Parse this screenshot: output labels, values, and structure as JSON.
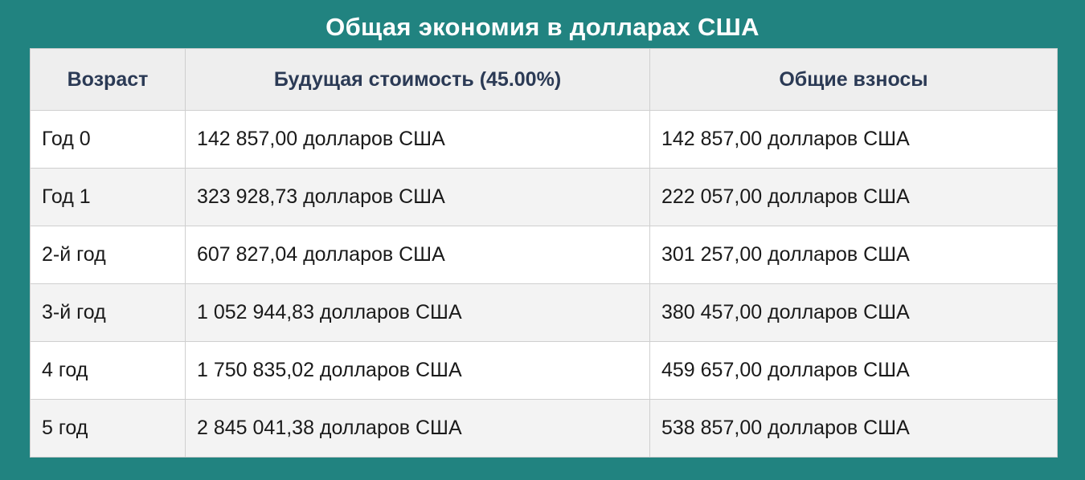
{
  "title": "Общая экономия в долларах США",
  "table": {
    "headers": [
      "Возраст",
      "Будущая стоимость (45.00%)",
      "Общие взносы"
    ],
    "rows": [
      [
        "Год 0",
        "142 857,00 долларов США",
        "142 857,00 долларов США"
      ],
      [
        "Год 1",
        "323 928,73 долларов США",
        "222 057,00 долларов США"
      ],
      [
        "2-й год",
        "607 827,04 долларов США",
        "301 257,00 долларов США"
      ],
      [
        "3-й год",
        "1 052 944,83 долларов США",
        "380 457,00 долларов США"
      ],
      [
        "4 год",
        "1 750 835,02 долларов США",
        "459 657,00 долларов США"
      ],
      [
        "5 год",
        "2 845 041,38 долларов США",
        "538 857,00 долларов США"
      ]
    ]
  },
  "colors": {
    "background": "#218380",
    "header_bg": "#eeeeee",
    "header_text": "#2b3a55",
    "stripe_bg": "#f3f3f3"
  }
}
